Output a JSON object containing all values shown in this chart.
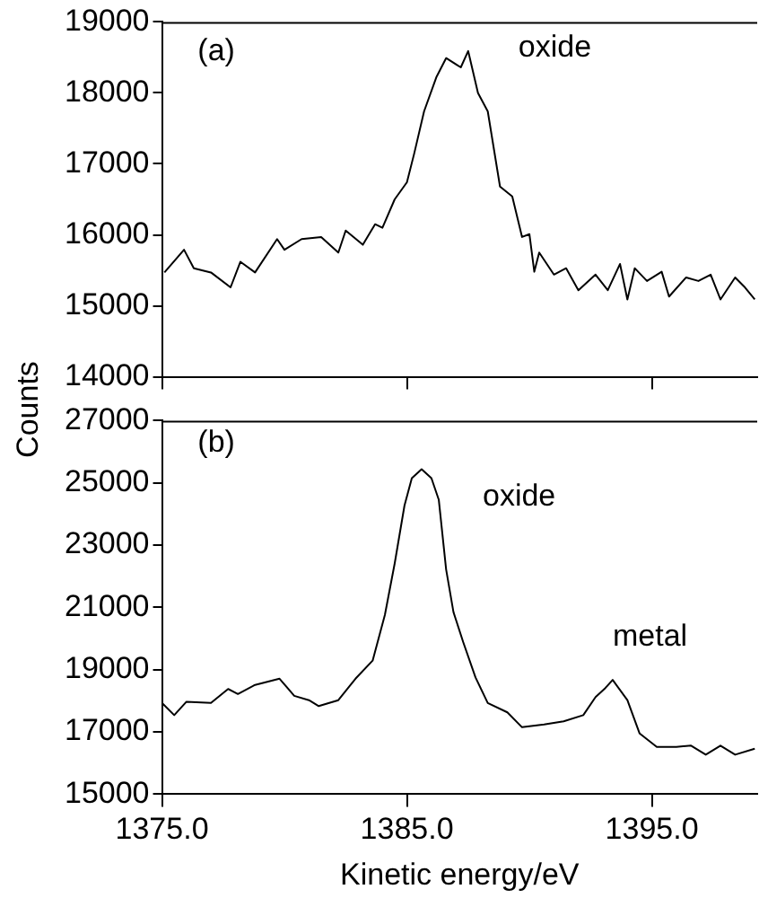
{
  "chart_data": [
    {
      "type": "line",
      "ylabel": "Counts",
      "annotations": [
        "(a)",
        "oxide"
      ],
      "xlim": [
        1375,
        1399.3
      ],
      "xticks": [
        {
          "value": 1375,
          "label": null
        },
        {
          "value": 1385,
          "label": null
        },
        {
          "value": 1395,
          "label": null
        }
      ],
      "ylim": [
        14000,
        19000
      ],
      "yticks": [
        14000,
        15000,
        16000,
        17000,
        18000,
        19000
      ],
      "tick_labels": "y",
      "grid": false,
      "legend": false,
      "marker": "none",
      "series": [
        {
          "color": "#000000",
          "x": [
            1375.1,
            1375.9,
            1376.3,
            1377.0,
            1377.8,
            1378.2,
            1378.8,
            1379.7,
            1380.0,
            1380.7,
            1381.5,
            1382.2,
            1382.5,
            1383.2,
            1383.7,
            1384.0,
            1384.5,
            1385.0,
            1385.3,
            1385.7,
            1386.2,
            1386.6,
            1387.2,
            1387.5,
            1387.9,
            1388.3,
            1388.8,
            1389.3,
            1389.7,
            1390.0,
            1390.2,
            1390.4,
            1391.0,
            1391.5,
            1392.0,
            1392.7,
            1393.2,
            1393.7,
            1394.0,
            1394.3,
            1394.8,
            1395.4,
            1395.7,
            1396.4,
            1396.9,
            1397.4,
            1397.8,
            1398.4,
            1398.8,
            1399.2
          ],
          "values": [
            15470,
            15790,
            15530,
            15470,
            15260,
            15620,
            15470,
            15940,
            15790,
            15940,
            15970,
            15750,
            16060,
            15860,
            16150,
            16100,
            16500,
            16740,
            17150,
            17740,
            18220,
            18490,
            18360,
            18590,
            18000,
            17740,
            16680,
            16540,
            15970,
            16010,
            15480,
            15750,
            15440,
            15530,
            15220,
            15440,
            15220,
            15590,
            15090,
            15530,
            15350,
            15480,
            15130,
            15400,
            15350,
            15440,
            15090,
            15400,
            15260,
            15090
          ]
        }
      ]
    },
    {
      "type": "line",
      "xlabel": "Kinetic energy/eV",
      "annotations": [
        "(b)",
        "oxide",
        "metal"
      ],
      "xlim": [
        1375,
        1399.3
      ],
      "xticks": [
        {
          "value": 1375,
          "label": "1375.0"
        },
        {
          "value": 1385,
          "label": "1385.0"
        },
        {
          "value": 1395,
          "label": "1395.0"
        }
      ],
      "ylim": [
        15000,
        27000
      ],
      "yticks": [
        15000,
        17000,
        19000,
        21000,
        23000,
        25000,
        27000
      ],
      "grid": false,
      "legend": false,
      "marker": "none",
      "series": [
        {
          "color": "#000000",
          "x": [
            1375.0,
            1375.5,
            1376.0,
            1377.0,
            1377.7,
            1378.1,
            1378.8,
            1379.8,
            1380.4,
            1381.0,
            1381.4,
            1382.2,
            1382.9,
            1383.6,
            1384.1,
            1384.5,
            1384.9,
            1385.2,
            1385.6,
            1386.0,
            1386.3,
            1386.6,
            1386.9,
            1387.3,
            1387.8,
            1388.3,
            1389.1,
            1389.7,
            1390.6,
            1391.4,
            1392.2,
            1392.7,
            1393.1,
            1393.4,
            1394.0,
            1394.5,
            1395.2,
            1396.0,
            1396.6,
            1397.2,
            1397.8,
            1398.4,
            1399.2
          ],
          "values": [
            17930,
            17540,
            17970,
            17930,
            18380,
            18220,
            18510,
            18710,
            18160,
            18020,
            17830,
            18020,
            18710,
            19290,
            20760,
            22410,
            24270,
            25150,
            25440,
            25150,
            24460,
            22220,
            20850,
            19880,
            18750,
            17930,
            17630,
            17150,
            17240,
            17340,
            17540,
            18120,
            18410,
            18670,
            18020,
            16950,
            16520,
            16520,
            16560,
            16270,
            16560,
            16270,
            16460
          ]
        }
      ]
    }
  ]
}
